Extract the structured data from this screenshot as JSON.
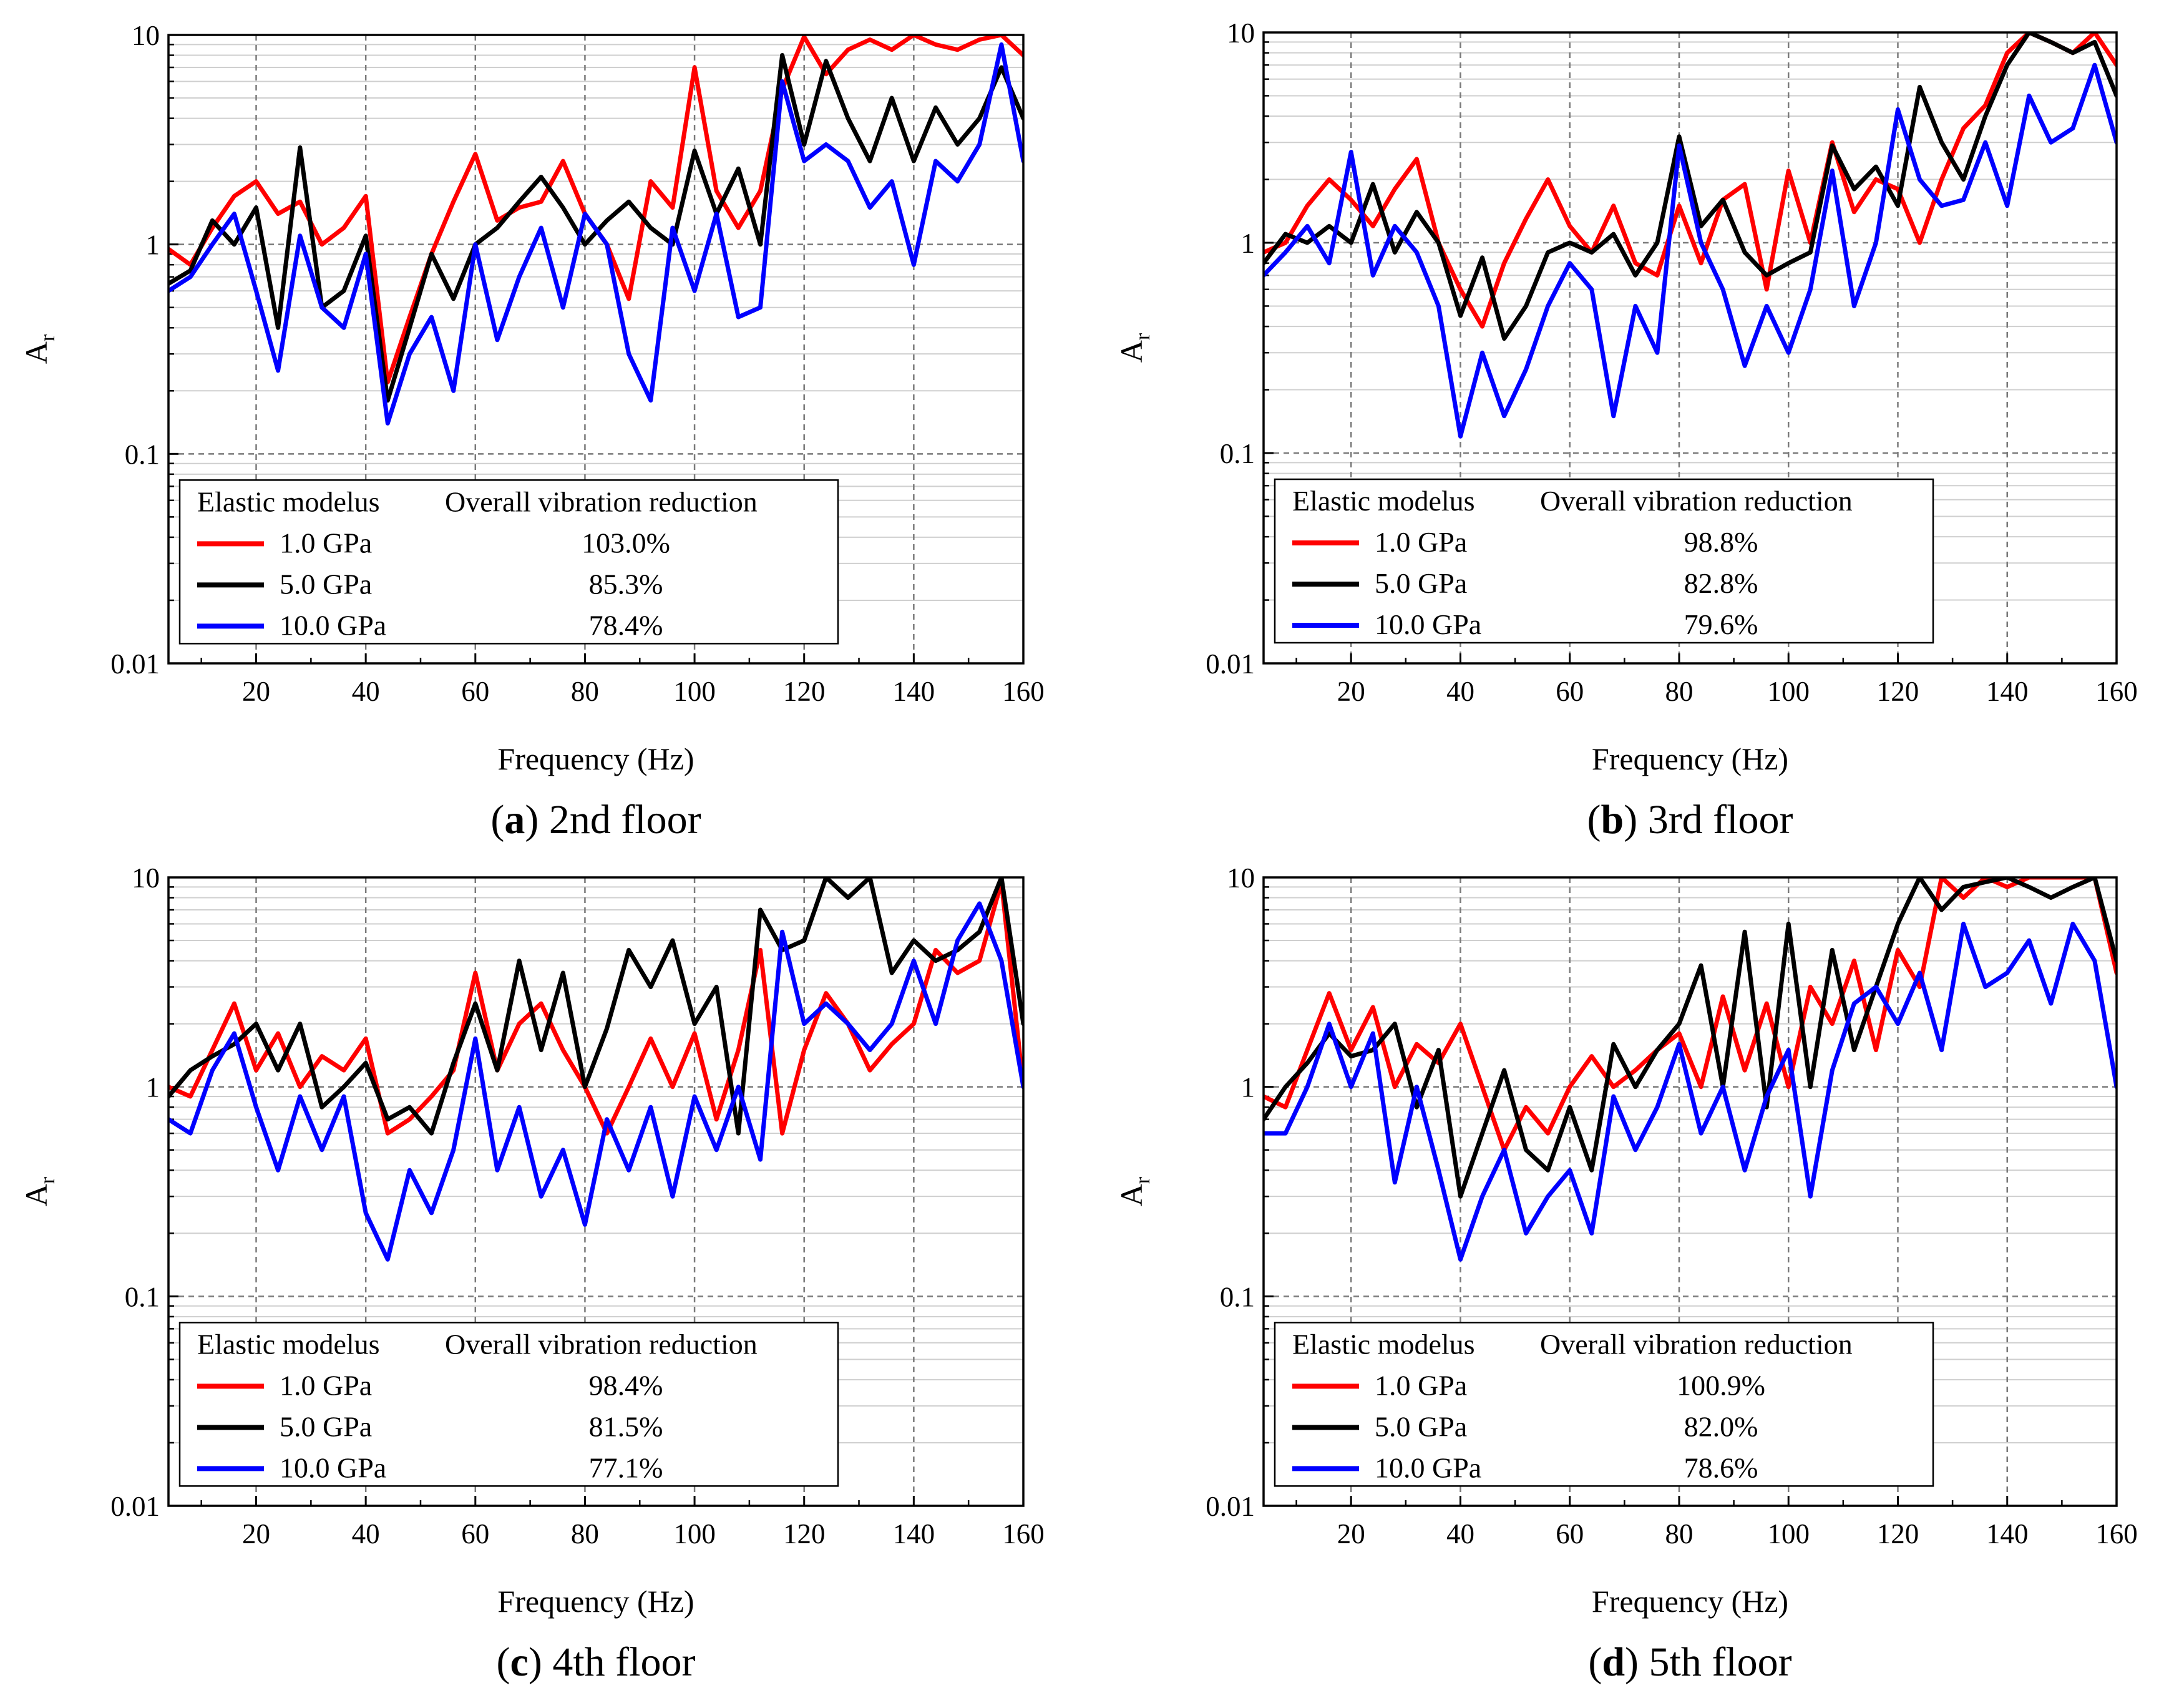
{
  "figure": {
    "x_axis_label": "Frequency (Hz)",
    "y_axis_label": "A",
    "y_axis_subscript": "r",
    "x_ticks": [
      20,
      40,
      60,
      80,
      100,
      120,
      140,
      160
    ],
    "y_ticks": [
      {
        "v": 10,
        "label": "10"
      },
      {
        "v": 1,
        "label": "1"
      },
      {
        "v": 0.1,
        "label": "0.1"
      },
      {
        "v": 0.01,
        "label": "0.01"
      }
    ],
    "legend_header_1": "Elastic modelus",
    "legend_header_2": "Overall vibration reduction",
    "series_styles": [
      {
        "name": "1.0 GPa",
        "color": "#ff0000"
      },
      {
        "name": "5.0 GPa",
        "color": "#000000"
      },
      {
        "name": "10.0 GPa",
        "color": "#0000ff"
      }
    ]
  },
  "chart_data": [
    {
      "type": "line",
      "panel_letter": "a",
      "caption": " 2nd floor",
      "xlabel": "Frequency (Hz)",
      "ylabel": "Ar",
      "xlim": [
        4,
        160
      ],
      "ylim": [
        0.01,
        10
      ],
      "yscale": "log",
      "grid": true,
      "series": [
        {
          "name": "1.0 GPa",
          "reduction": "103.0%",
          "x": [
            4,
            8,
            12,
            16,
            20,
            24,
            28,
            32,
            36,
            40,
            44,
            48,
            52,
            56,
            60,
            64,
            68,
            72,
            76,
            80,
            84,
            88,
            92,
            96,
            100,
            104,
            108,
            112,
            116,
            120,
            124,
            128,
            132,
            136,
            140,
            144,
            148,
            152,
            156,
            160
          ],
          "values": [
            0.95,
            0.8,
            1.2,
            1.7,
            2.0,
            1.4,
            1.6,
            1.0,
            1.2,
            1.7,
            0.22,
            0.45,
            0.9,
            1.6,
            2.7,
            1.3,
            1.5,
            1.6,
            2.5,
            1.4,
            1.0,
            0.55,
            2.0,
            1.5,
            7.0,
            1.8,
            1.2,
            1.8,
            5.5,
            9.8,
            6.5,
            8.5,
            9.5,
            8.5,
            10,
            9.0,
            8.5,
            9.5,
            10,
            8.0
          ]
        },
        {
          "name": "5.0 GPa",
          "reduction": "85.3%",
          "x": [
            4,
            8,
            12,
            16,
            20,
            24,
            28,
            32,
            36,
            40,
            44,
            48,
            52,
            56,
            60,
            64,
            68,
            72,
            76,
            80,
            84,
            88,
            92,
            96,
            100,
            104,
            108,
            112,
            116,
            120,
            124,
            128,
            132,
            136,
            140,
            144,
            148,
            152,
            156,
            160
          ],
          "values": [
            0.65,
            0.75,
            1.3,
            1.0,
            1.5,
            0.4,
            2.9,
            0.5,
            0.6,
            1.1,
            0.18,
            0.4,
            0.9,
            0.55,
            1.0,
            1.2,
            1.6,
            2.1,
            1.5,
            1.0,
            1.3,
            1.6,
            1.2,
            1.0,
            2.8,
            1.4,
            2.3,
            1.0,
            8.0,
            3.0,
            7.5,
            4.0,
            2.5,
            5.0,
            2.5,
            4.5,
            3.0,
            4.0,
            7.0,
            4.0
          ]
        },
        {
          "name": "10.0 GPa",
          "reduction": "78.4%",
          "x": [
            4,
            8,
            12,
            16,
            20,
            24,
            28,
            32,
            36,
            40,
            44,
            48,
            52,
            56,
            60,
            64,
            68,
            72,
            76,
            80,
            84,
            88,
            92,
            96,
            100,
            104,
            108,
            112,
            116,
            120,
            124,
            128,
            132,
            136,
            140,
            144,
            148,
            152,
            156,
            160
          ],
          "values": [
            0.6,
            0.7,
            1.0,
            1.4,
            0.6,
            0.25,
            1.1,
            0.5,
            0.4,
            0.9,
            0.14,
            0.3,
            0.45,
            0.2,
            1.0,
            0.35,
            0.7,
            1.2,
            0.5,
            1.4,
            1.0,
            0.3,
            0.18,
            1.2,
            0.6,
            1.4,
            0.45,
            0.5,
            6.0,
            2.5,
            3.0,
            2.5,
            1.5,
            2.0,
            0.8,
            2.5,
            2.0,
            3.0,
            9.0,
            2.5
          ]
        }
      ]
    },
    {
      "type": "line",
      "panel_letter": "b",
      "caption": " 3rd floor",
      "xlabel": "Frequency (Hz)",
      "ylabel": "Ar",
      "xlim": [
        4,
        160
      ],
      "ylim": [
        0.01,
        10
      ],
      "yscale": "log",
      "grid": true,
      "series": [
        {
          "name": "1.0 GPa",
          "reduction": "98.8%",
          "x": [
            4,
            8,
            12,
            16,
            20,
            24,
            28,
            32,
            36,
            40,
            44,
            48,
            52,
            56,
            60,
            64,
            68,
            72,
            76,
            80,
            84,
            88,
            92,
            96,
            100,
            104,
            108,
            112,
            116,
            120,
            124,
            128,
            132,
            136,
            140,
            144,
            148,
            152,
            156,
            160
          ],
          "values": [
            0.9,
            1.0,
            1.5,
            2.0,
            1.6,
            1.2,
            1.8,
            2.5,
            1.0,
            0.6,
            0.4,
            0.8,
            1.3,
            2.0,
            1.2,
            0.9,
            1.5,
            0.8,
            0.7,
            1.5,
            0.8,
            1.6,
            1.9,
            0.6,
            2.2,
            1.0,
            3.0,
            1.4,
            2.0,
            1.8,
            1.0,
            2.0,
            3.5,
            4.5,
            8.0,
            10,
            9.0,
            8.0,
            10,
            7.0
          ]
        },
        {
          "name": "5.0 GPa",
          "reduction": "82.8%",
          "x": [
            4,
            8,
            12,
            16,
            20,
            24,
            28,
            32,
            36,
            40,
            44,
            48,
            52,
            56,
            60,
            64,
            68,
            72,
            76,
            80,
            84,
            88,
            92,
            96,
            100,
            104,
            108,
            112,
            116,
            120,
            124,
            128,
            132,
            136,
            140,
            144,
            148,
            152,
            156,
            160
          ],
          "values": [
            0.8,
            1.1,
            1.0,
            1.2,
            1.0,
            1.9,
            0.9,
            1.4,
            1.0,
            0.45,
            0.85,
            0.35,
            0.5,
            0.9,
            1.0,
            0.9,
            1.1,
            0.7,
            1.0,
            3.2,
            1.2,
            1.6,
            0.9,
            0.7,
            0.8,
            0.9,
            2.9,
            1.8,
            2.3,
            1.5,
            5.5,
            3.0,
            2.0,
            4.0,
            7.0,
            10,
            9.0,
            8.0,
            9.0,
            5.0
          ]
        },
        {
          "name": "10.0 GPa",
          "reduction": "79.6%",
          "x": [
            4,
            8,
            12,
            16,
            20,
            24,
            28,
            32,
            36,
            40,
            44,
            48,
            52,
            56,
            60,
            64,
            68,
            72,
            76,
            80,
            84,
            88,
            92,
            96,
            100,
            104,
            108,
            112,
            116,
            120,
            124,
            128,
            132,
            136,
            140,
            144,
            148,
            152,
            156,
            160
          ],
          "values": [
            0.7,
            0.9,
            1.2,
            0.8,
            2.7,
            0.7,
            1.2,
            0.9,
            0.5,
            0.12,
            0.3,
            0.15,
            0.25,
            0.5,
            0.8,
            0.6,
            0.15,
            0.5,
            0.3,
            2.9,
            1.0,
            0.6,
            0.26,
            0.5,
            0.3,
            0.6,
            2.2,
            0.5,
            1.0,
            4.3,
            2.0,
            1.5,
            1.6,
            3.0,
            1.5,
            5.0,
            3.0,
            3.5,
            7.0,
            3.0
          ]
        }
      ]
    },
    {
      "type": "line",
      "panel_letter": "c",
      "caption": " 4th floor",
      "xlabel": "Frequency (Hz)",
      "ylabel": "Ar",
      "xlim": [
        4,
        160
      ],
      "ylim": [
        0.01,
        10
      ],
      "yscale": "log",
      "grid": true,
      "series": [
        {
          "name": "1.0 GPa",
          "reduction": "98.4%",
          "x": [
            4,
            8,
            12,
            16,
            20,
            24,
            28,
            32,
            36,
            40,
            44,
            48,
            52,
            56,
            60,
            64,
            68,
            72,
            76,
            80,
            84,
            88,
            92,
            96,
            100,
            104,
            108,
            112,
            116,
            120,
            124,
            128,
            132,
            136,
            140,
            144,
            148,
            152,
            156,
            160
          ],
          "values": [
            1.0,
            0.9,
            1.5,
            2.5,
            1.2,
            1.8,
            1.0,
            1.4,
            1.2,
            1.7,
            0.6,
            0.7,
            0.9,
            1.2,
            3.5,
            1.2,
            2.0,
            2.5,
            1.5,
            1.0,
            0.6,
            1.0,
            1.7,
            1.0,
            1.8,
            0.7,
            1.5,
            4.5,
            0.6,
            1.5,
            2.8,
            2.0,
            1.2,
            1.6,
            2.0,
            4.5,
            3.5,
            4.0,
            9.5,
            1.0
          ]
        },
        {
          "name": "5.0 GPa",
          "reduction": "81.5%",
          "x": [
            4,
            8,
            12,
            16,
            20,
            24,
            28,
            32,
            36,
            40,
            44,
            48,
            52,
            56,
            60,
            64,
            68,
            72,
            76,
            80,
            84,
            88,
            92,
            96,
            100,
            104,
            108,
            112,
            116,
            120,
            124,
            128,
            132,
            136,
            140,
            144,
            148,
            152,
            156,
            160
          ],
          "values": [
            0.9,
            1.2,
            1.4,
            1.6,
            2.0,
            1.2,
            2.0,
            0.8,
            1.0,
            1.3,
            0.7,
            0.8,
            0.6,
            1.3,
            2.5,
            1.2,
            4.0,
            1.5,
            3.5,
            1.0,
            1.9,
            4.5,
            3.0,
            5.0,
            2.0,
            3.0,
            0.6,
            7.0,
            4.5,
            5.0,
            10,
            8.0,
            10,
            3.5,
            5.0,
            4.0,
            4.5,
            5.5,
            10,
            2.0
          ]
        },
        {
          "name": "10.0 GPa",
          "reduction": "77.1%",
          "x": [
            4,
            8,
            12,
            16,
            20,
            24,
            28,
            32,
            36,
            40,
            44,
            48,
            52,
            56,
            60,
            64,
            68,
            72,
            76,
            80,
            84,
            88,
            92,
            96,
            100,
            104,
            108,
            112,
            116,
            120,
            124,
            128,
            132,
            136,
            140,
            144,
            148,
            152,
            156,
            160
          ],
          "values": [
            0.7,
            0.6,
            1.2,
            1.8,
            0.8,
            0.4,
            0.9,
            0.5,
            0.9,
            0.25,
            0.15,
            0.4,
            0.25,
            0.5,
            1.7,
            0.4,
            0.8,
            0.3,
            0.5,
            0.22,
            0.7,
            0.4,
            0.8,
            0.3,
            0.9,
            0.5,
            1.0,
            0.45,
            5.5,
            2.0,
            2.5,
            2.0,
            1.5,
            2.0,
            4.0,
            2.0,
            5.0,
            7.5,
            4.0,
            1.0
          ]
        }
      ]
    },
    {
      "type": "line",
      "panel_letter": "d",
      "caption": " 5th floor",
      "xlabel": "Frequency (Hz)",
      "ylabel": "Ar",
      "xlim": [
        4,
        160
      ],
      "ylim": [
        0.01,
        10
      ],
      "yscale": "log",
      "grid": true,
      "series": [
        {
          "name": "1.0 GPa",
          "reduction": "100.9%",
          "x": [
            4,
            8,
            12,
            16,
            20,
            24,
            28,
            32,
            36,
            40,
            44,
            48,
            52,
            56,
            60,
            64,
            68,
            72,
            76,
            80,
            84,
            88,
            92,
            96,
            100,
            104,
            108,
            112,
            116,
            120,
            124,
            128,
            132,
            136,
            140,
            144,
            148,
            152,
            156,
            160
          ],
          "values": [
            0.9,
            0.8,
            1.5,
            2.8,
            1.5,
            2.4,
            1.0,
            1.6,
            1.3,
            2.0,
            1.0,
            0.5,
            0.8,
            0.6,
            1.0,
            1.4,
            1.0,
            1.2,
            1.5,
            1.8,
            1.0,
            2.7,
            1.2,
            2.5,
            1.0,
            3.0,
            2.0,
            4.0,
            1.5,
            4.5,
            3.0,
            10,
            8.0,
            10,
            9.0,
            10,
            10,
            10,
            10,
            3.5
          ]
        },
        {
          "name": "5.0 GPa",
          "reduction": "82.0%",
          "x": [
            4,
            8,
            12,
            16,
            20,
            24,
            28,
            32,
            36,
            40,
            44,
            48,
            52,
            56,
            60,
            64,
            68,
            72,
            76,
            80,
            84,
            88,
            92,
            96,
            100,
            104,
            108,
            112,
            116,
            120,
            124,
            128,
            132,
            136,
            140,
            144,
            148,
            152,
            156,
            160
          ],
          "values": [
            0.7,
            1.0,
            1.3,
            1.8,
            1.4,
            1.5,
            2.0,
            0.8,
            1.5,
            0.3,
            0.6,
            1.2,
            0.5,
            0.4,
            0.8,
            0.4,
            1.6,
            1.0,
            1.5,
            2.0,
            3.8,
            1.0,
            5.5,
            0.8,
            6.0,
            1.0,
            4.5,
            1.5,
            3.0,
            6.0,
            10,
            7.0,
            9.0,
            9.5,
            10,
            9.0,
            8.0,
            9.0,
            10,
            4.0
          ]
        },
        {
          "name": "10.0 GPa",
          "reduction": "78.6%",
          "x": [
            4,
            8,
            12,
            16,
            20,
            24,
            28,
            32,
            36,
            40,
            44,
            48,
            52,
            56,
            60,
            64,
            68,
            72,
            76,
            80,
            84,
            88,
            92,
            96,
            100,
            104,
            108,
            112,
            116,
            120,
            124,
            128,
            132,
            136,
            140,
            144,
            148,
            152,
            156,
            160
          ],
          "values": [
            0.6,
            0.6,
            1.0,
            2.0,
            1.0,
            1.8,
            0.35,
            1.0,
            0.4,
            0.15,
            0.3,
            0.5,
            0.2,
            0.3,
            0.4,
            0.2,
            0.9,
            0.5,
            0.8,
            1.6,
            0.6,
            1.0,
            0.4,
            0.9,
            1.5,
            0.3,
            1.2,
            2.5,
            3.0,
            2.0,
            3.5,
            1.5,
            6.0,
            3.0,
            3.5,
            5.0,
            2.5,
            6.0,
            4.0,
            1.0
          ]
        }
      ]
    }
  ]
}
